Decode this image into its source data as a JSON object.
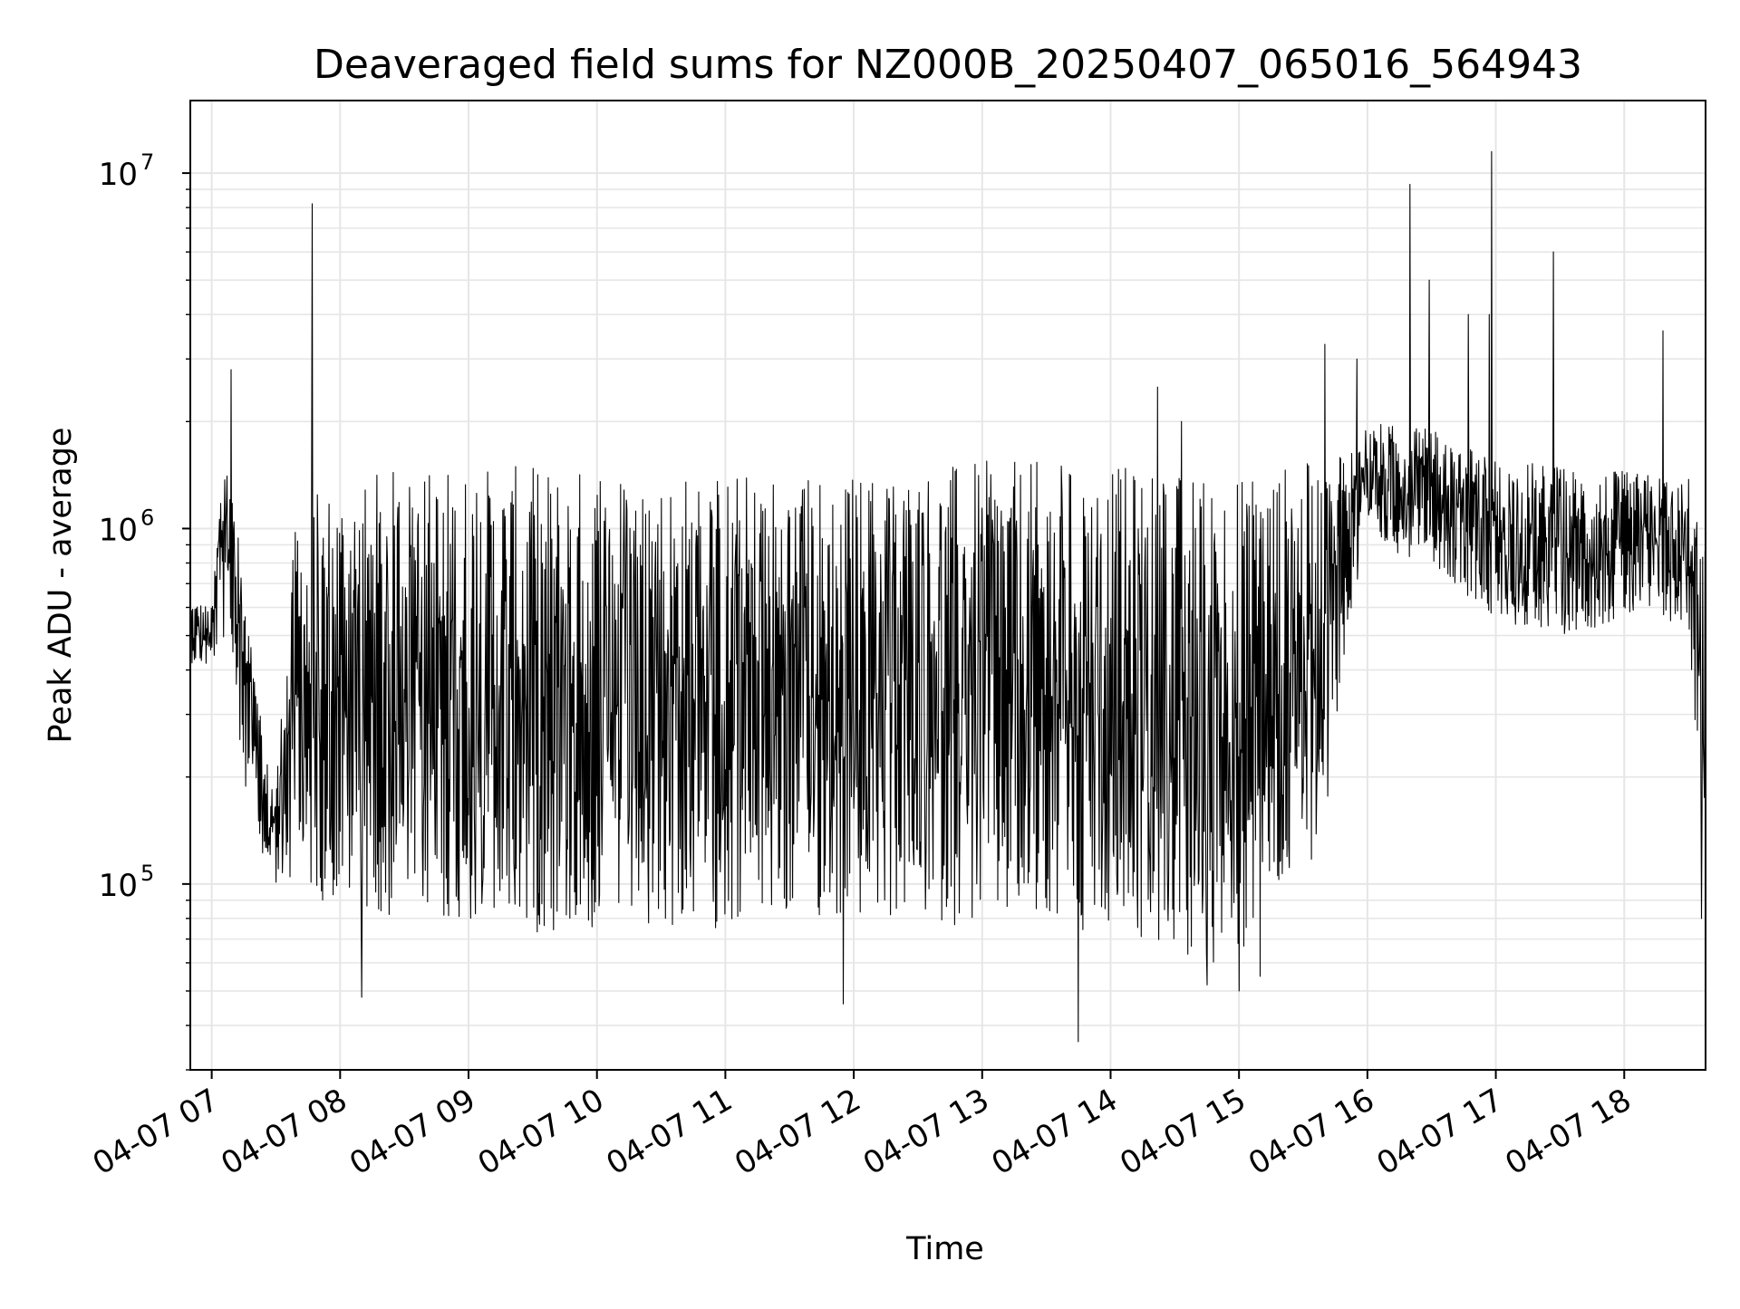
{
  "chart_data": {
    "type": "line",
    "title": "Deaveraged field sums for NZ000B_20250407_065016_564943",
    "xlabel": "Time",
    "ylabel": "Peak ADU - average",
    "yscale": "log",
    "ylim": [
      30000,
      16000000
    ],
    "xlim": [
      "04-07 06:50",
      "04-07 18:38"
    ],
    "grid": true,
    "line_color": "#000000",
    "grid_color": "#e6e6e6",
    "x_ticks": [
      {
        "t": "04-07 07:00",
        "label": "04-07 07"
      },
      {
        "t": "04-07 08:00",
        "label": "04-07 08"
      },
      {
        "t": "04-07 09:00",
        "label": "04-07 09"
      },
      {
        "t": "04-07 10:00",
        "label": "04-07 10"
      },
      {
        "t": "04-07 11:00",
        "label": "04-07 11"
      },
      {
        "t": "04-07 12:00",
        "label": "04-07 12"
      },
      {
        "t": "04-07 13:00",
        "label": "04-07 13"
      },
      {
        "t": "04-07 14:00",
        "label": "04-07 14"
      },
      {
        "t": "04-07 15:00",
        "label": "04-07 15"
      },
      {
        "t": "04-07 16:00",
        "label": "04-07 16"
      },
      {
        "t": "04-07 17:00",
        "label": "04-07 17"
      },
      {
        "t": "04-07 18:00",
        "label": "04-07 18"
      }
    ],
    "y_ticks": [
      {
        "value": 100000,
        "base": "10",
        "exp": "5"
      },
      {
        "value": 1000000,
        "base": "10",
        "exp": "6"
      },
      {
        "value": 10000000,
        "base": "10",
        "exp": "7"
      }
    ],
    "series": [
      {
        "envelope": {
          "x": [
            "04-07 06:50",
            "04-07 07:00",
            "04-07 07:05",
            "04-07 07:10",
            "04-07 07:15",
            "04-07 07:20",
            "04-07 07:25",
            "04-07 07:30",
            "04-07 07:40",
            "04-07 08:00",
            "04-07 08:30",
            "04-07 09:00",
            "04-07 09:30",
            "04-07 10:00",
            "04-07 10:30",
            "04-07 11:00",
            "04-07 11:30",
            "04-07 12:00",
            "04-07 12:30",
            "04-07 13:00",
            "04-07 13:30",
            "04-07 14:00",
            "04-07 14:30",
            "04-07 14:45",
            "04-07 15:00",
            "04-07 15:15",
            "04-07 15:30",
            "04-07 15:40",
            "04-07 15:45",
            "04-07 15:50",
            "04-07 16:00",
            "04-07 16:30",
            "04-07 17:00",
            "04-07 17:30",
            "04-07 18:00",
            "04-07 18:30",
            "04-07 18:38"
          ],
          "high": [
            650000,
            600000,
            1700000,
            1300000,
            700000,
            400000,
            230000,
            200000,
            1200000,
            1400000,
            1500000,
            1500000,
            1500000,
            1500000,
            1450000,
            1450000,
            1450000,
            1450000,
            1500000,
            1550000,
            1550000,
            1500000,
            1450000,
            1500000,
            1500000,
            1500000,
            1550000,
            1550000,
            1600000,
            1700000,
            2000000,
            1900000,
            1600000,
            1500000,
            1450000,
            1400000,
            900000
          ],
          "low": [
            420000,
            400000,
            500000,
            320000,
            200000,
            140000,
            110000,
            100000,
            95000,
            85000,
            80000,
            75000,
            72000,
            72000,
            74000,
            75000,
            78000,
            78000,
            78000,
            75000,
            72000,
            72000,
            62000,
            58000,
            62000,
            80000,
            100000,
            150000,
            250000,
            450000,
            900000,
            800000,
            550000,
            500000,
            550000,
            520000,
            110000
          ]
        },
        "peaks": [
          {
            "t": "04-07 07:09",
            "value": 2800000
          },
          {
            "t": "04-07 07:47",
            "value": 8200000
          },
          {
            "t": "04-07 14:22",
            "value": 2500000
          },
          {
            "t": "04-07 14:33",
            "value": 2000000
          },
          {
            "t": "04-07 15:40",
            "value": 3300000
          },
          {
            "t": "04-07 15:55",
            "value": 3000000
          },
          {
            "t": "04-07 16:20",
            "value": 9300000
          },
          {
            "t": "04-07 16:29",
            "value": 5000000
          },
          {
            "t": "04-07 16:47",
            "value": 4000000
          },
          {
            "t": "04-07 16:57",
            "value": 4000000
          },
          {
            "t": "04-07 16:58",
            "value": 11500000
          },
          {
            "t": "04-07 17:27",
            "value": 6000000
          },
          {
            "t": "04-07 18:18",
            "value": 3600000
          }
        ],
        "dips": [
          {
            "t": "04-07 08:10",
            "value": 48000
          },
          {
            "t": "04-07 11:55",
            "value": 46000
          },
          {
            "t": "04-07 13:45",
            "value": 36000
          },
          {
            "t": "04-07 14:45",
            "value": 52000
          },
          {
            "t": "04-07 15:00",
            "value": 50000
          },
          {
            "t": "04-07 15:10",
            "value": 55000
          },
          {
            "t": "04-07 18:36",
            "value": 80000
          }
        ]
      }
    ]
  }
}
